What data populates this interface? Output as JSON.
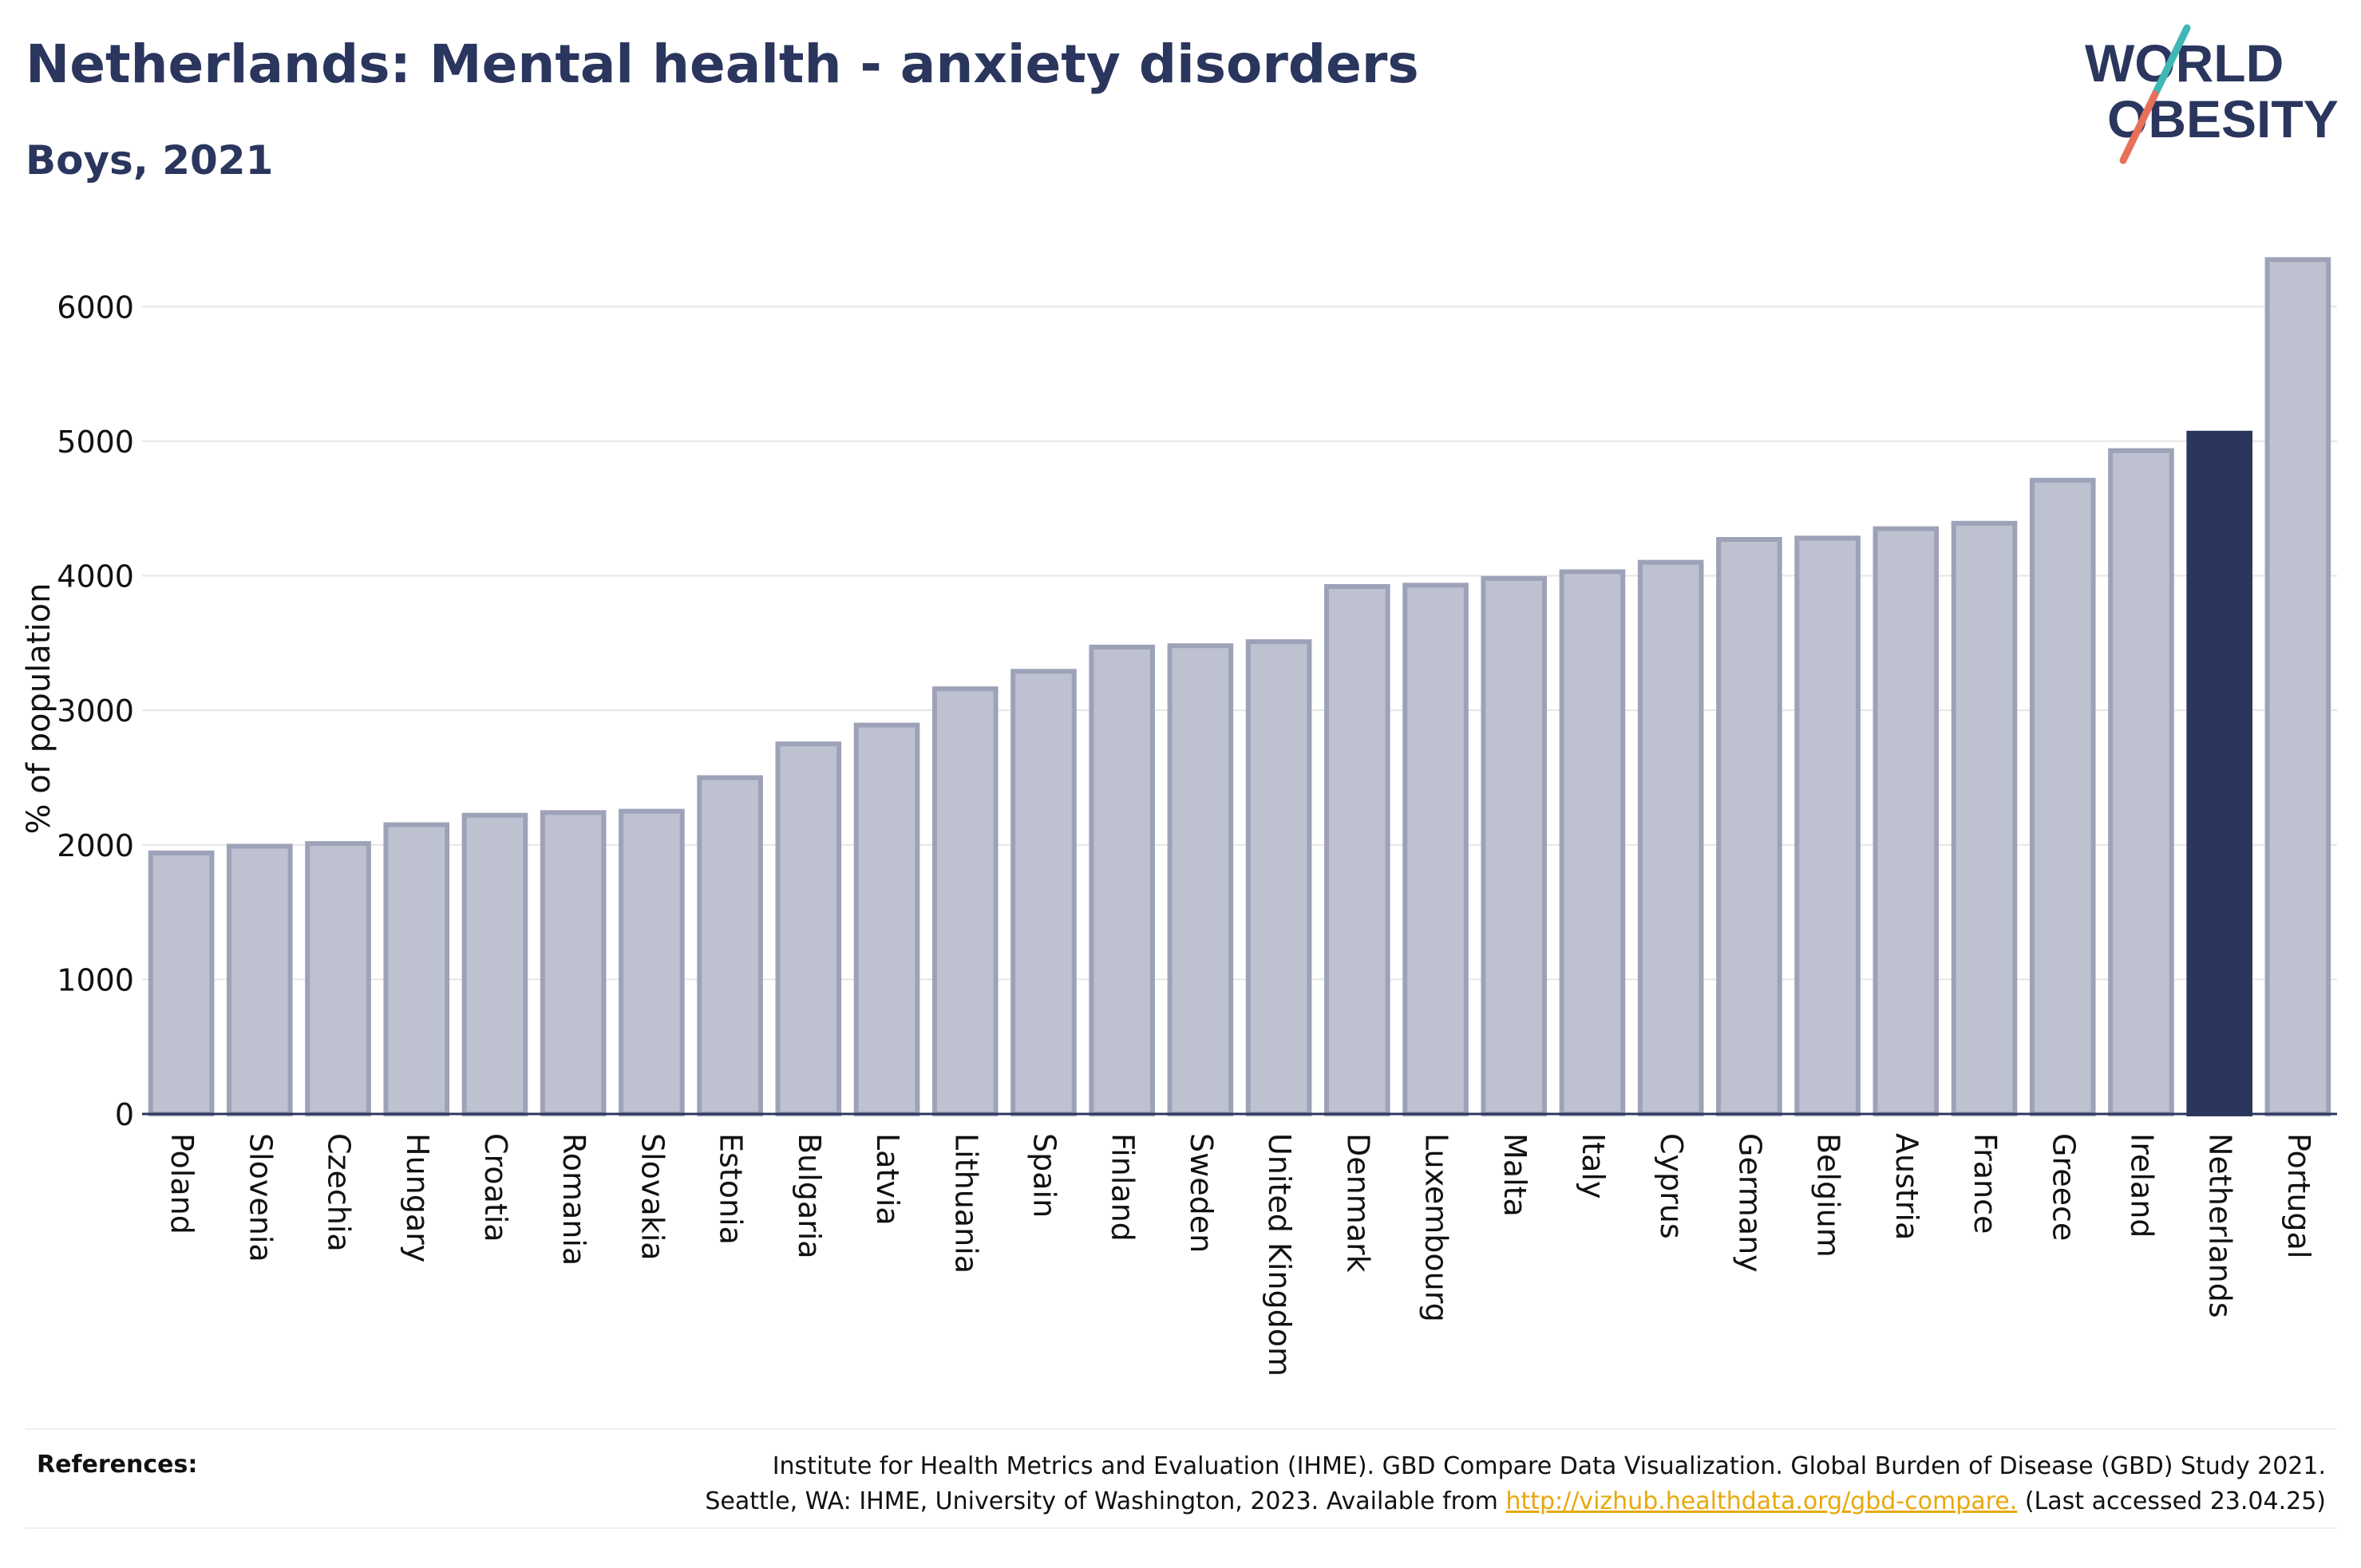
{
  "header": {
    "title": "Netherlands: Mental health - anxiety disorders",
    "subtitle": "Boys, 2021"
  },
  "logo": {
    "line1": "WORLD",
    "line2": "OBESITY",
    "colors": {
      "text": "#2b365e",
      "slash_top": "#3fb7b5",
      "slash_bottom": "#e8705b"
    }
  },
  "chart_data": {
    "type": "bar",
    "ylabel": "% of population",
    "xlabel": "",
    "ylim": [
      0,
      6500
    ],
    "yticks": [
      0,
      1000,
      2000,
      3000,
      4000,
      5000,
      6000
    ],
    "grid": true,
    "highlight": "Netherlands",
    "colors": {
      "bar": "#bec2d0",
      "bar_edge": "#9da2b8",
      "highlight": "#2b365e",
      "grid": "#e6e6e6",
      "axis": "#2b365e"
    },
    "categories": [
      "Poland",
      "Slovenia",
      "Czechia",
      "Hungary",
      "Croatia",
      "Romania",
      "Slovakia",
      "Estonia",
      "Bulgaria",
      "Latvia",
      "Lithuania",
      "Spain",
      "Finland",
      "Sweden",
      "United Kingdom",
      "Denmark",
      "Luxembourg",
      "Malta",
      "Italy",
      "Cyprus",
      "Germany",
      "Belgium",
      "Austria",
      "France",
      "Greece",
      "Ireland",
      "Netherlands",
      "Portugal"
    ],
    "values": [
      1940,
      1990,
      2010,
      2150,
      2220,
      2240,
      2250,
      2500,
      2750,
      2890,
      3160,
      3290,
      3470,
      3480,
      3510,
      3920,
      3930,
      3980,
      4030,
      4100,
      4270,
      4280,
      4350,
      4390,
      4710,
      4930,
      5060,
      6350
    ]
  },
  "references": {
    "label": "References:",
    "line1": "Institute for Health Metrics and Evaluation (IHME). GBD Compare Data Visualization. Global Burden of Disease (GBD) Study 2021.",
    "line2_prefix": "Seattle, WA: IHME, University of Washington, 2023. Available from ",
    "link": "http://vizhub.healthdata.org/gbd-compare.",
    "line2_suffix": " (Last accessed 23.04.25)"
  }
}
